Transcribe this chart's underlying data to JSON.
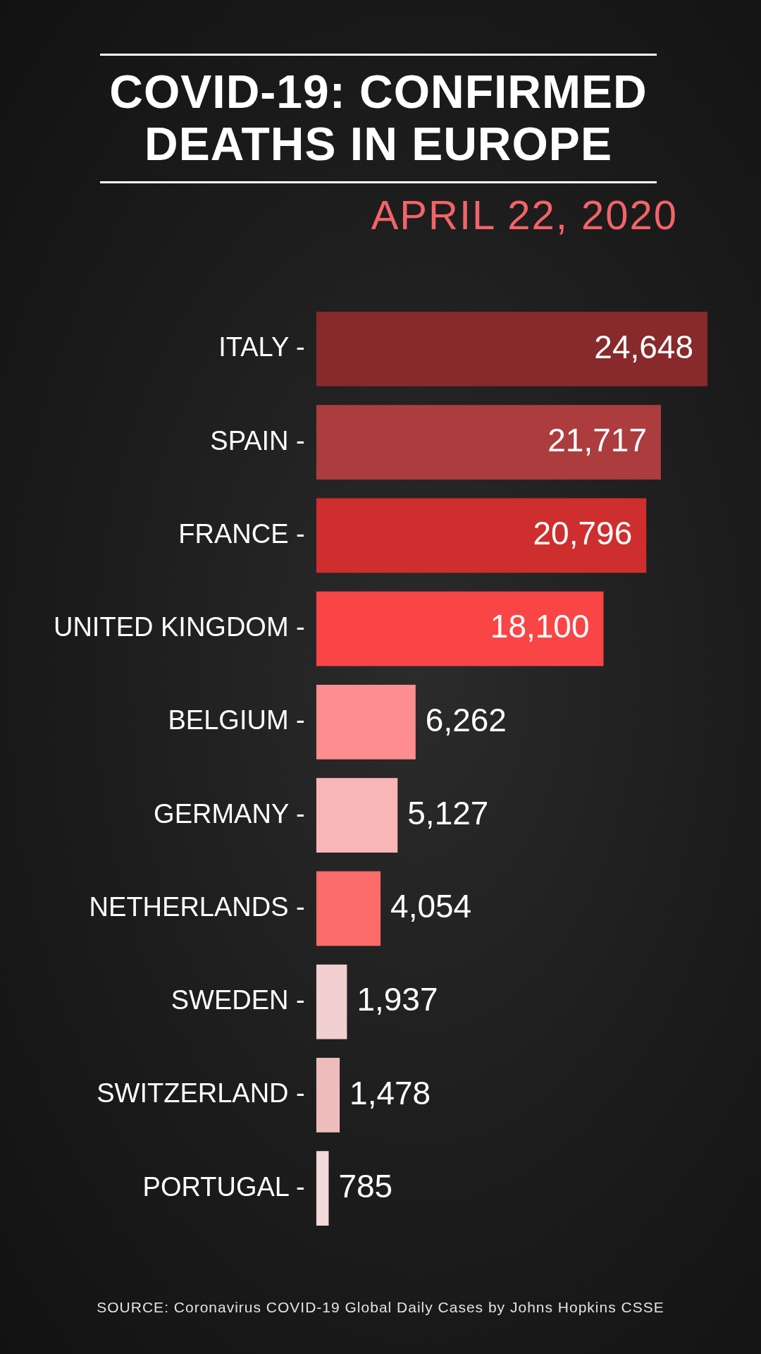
{
  "chart_data": {
    "type": "bar",
    "orientation": "horizontal",
    "title": "COVID-19: CONFIRMED DEATHS IN EUROPE",
    "subtitle": "APRIL 22, 2020",
    "categories": [
      "ITALY -",
      "SPAIN -",
      "FRANCE -",
      "UNITED KINGDOM -",
      "BELGIUM -",
      "GERMANY -",
      "NETHERLANDS -",
      "SWEDEN -",
      "SWITZERLAND -",
      "PORTUGAL -"
    ],
    "values": [
      24648,
      21717,
      20796,
      18100,
      6262,
      5127,
      4054,
      1937,
      1478,
      785
    ],
    "value_labels": [
      "24,648",
      "21,717",
      "20,796",
      "18,100",
      "6,262",
      "5,127",
      "4,054",
      "1,937",
      "1,478",
      "785"
    ],
    "colors": [
      "#88292b",
      "#ad3c3e",
      "#cf2e2e",
      "#fa4546",
      "#fd8d8e",
      "#f8b6b7",
      "#fb6c6b",
      "#f2cfd0",
      "#edbdbe",
      "#f4d9da"
    ],
    "annotations": [
      "SOURCE: Coronavirus COVID-19 Global Daily Cases by Johns Hopkins CSSE"
    ]
  }
}
